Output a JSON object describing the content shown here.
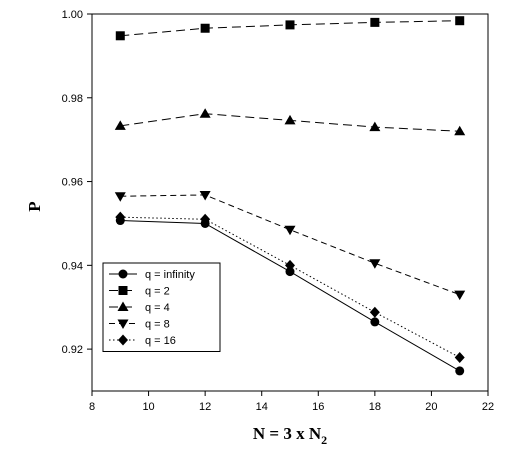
{
  "chart_data": {
    "type": "line",
    "title": "",
    "xlabel": "N = 3 x N",
    "xlabel_sub": "2",
    "ylabel": "P",
    "xlim": [
      8,
      22
    ],
    "ylim": [
      0.91,
      1.0
    ],
    "xticks": [
      8,
      10,
      12,
      14,
      16,
      18,
      20,
      22
    ],
    "yticks": [
      0.92,
      0.94,
      0.96,
      0.98,
      1.0
    ],
    "ytick_labels": [
      "0.92",
      "0.94",
      "0.96",
      "0.98",
      "1.00"
    ],
    "grid": false,
    "legend_position": "bottom-left",
    "x": [
      9,
      12,
      15,
      18,
      21
    ],
    "series": [
      {
        "name": "q = infinity",
        "marker": "circle",
        "line": "solid",
        "values": [
          0.9507,
          0.95,
          0.9385,
          0.9265,
          0.9148
        ]
      },
      {
        "name": "q = 2",
        "marker": "square",
        "line": "long-dash",
        "values": [
          0.9948,
          0.9966,
          0.9974,
          0.998,
          0.9984
        ]
      },
      {
        "name": "q = 4",
        "marker": "triangle-up",
        "line": "long-dash",
        "values": [
          0.9733,
          0.9762,
          0.9746,
          0.973,
          0.972
        ]
      },
      {
        "name": "q = 8",
        "marker": "triangle-down",
        "line": "dash",
        "values": [
          0.9565,
          0.9568,
          0.9485,
          0.9405,
          0.933
        ]
      },
      {
        "name": "q = 16",
        "marker": "diamond",
        "line": "dot",
        "values": [
          0.9515,
          0.951,
          0.94,
          0.9288,
          0.918
        ]
      }
    ]
  }
}
